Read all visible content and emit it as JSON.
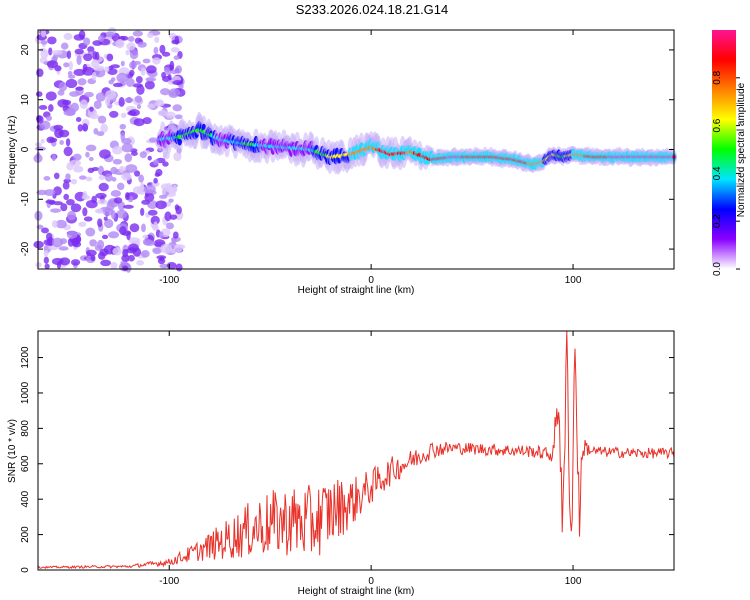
{
  "title": "S233.2026.024.18.21.G14",
  "colors": {
    "snr_line": "#e8322a",
    "axis": "#000000"
  },
  "chart_data": [
    {
      "type": "heatmap",
      "xlabel": "Height of straight line (km)",
      "ylabel": "Frequency (Hz)",
      "xlim": [
        -165,
        150
      ],
      "ylim": [
        -24,
        24
      ],
      "xticks": [
        -100,
        0,
        100
      ],
      "yticks": [
        -20,
        -10,
        0,
        10,
        20
      ],
      "colorbar": {
        "label": "Normalized spectral amplitude",
        "range": [
          0,
          1
        ],
        "ticks": [
          0.0,
          0.2,
          0.4,
          0.6,
          0.8
        ],
        "tick_labels": [
          "0.0",
          "0.2",
          "0.4",
          "0.6",
          "0.8"
        ],
        "colormap": [
          "#ffffff",
          "#8a00ff",
          "#0000ff",
          "#00e5ff",
          "#00ff00",
          "#ffff00",
          "#ff8000",
          "#ff0000",
          "#ff1493"
        ]
      },
      "track": {
        "x": [
          -105,
          -95,
          -85,
          -75,
          -60,
          -45,
          -30,
          -20,
          -10,
          0,
          10,
          20,
          30,
          40,
          60,
          70,
          80,
          85,
          90,
          95,
          100,
          110,
          120,
          150
        ],
        "freq": [
          2,
          2.5,
          4,
          2,
          1,
          0.5,
          0,
          -1.5,
          -1,
          0.5,
          -1,
          -0.5,
          -2,
          -1.5,
          -1.5,
          -2,
          -3,
          -2.5,
          -1,
          -1.5,
          -1,
          -1.5,
          -1.5,
          -1.5
        ],
        "amplitude": [
          0.35,
          0.45,
          0.5,
          0.4,
          0.45,
          0.35,
          0.4,
          0.6,
          0.7,
          0.8,
          0.85,
          0.8,
          0.9,
          0.95,
          0.9,
          0.85,
          0.8,
          0.7,
          0.6,
          0.5,
          0.7,
          0.9,
          0.95,
          0.95
        ]
      },
      "noise_region": {
        "x_from": -165,
        "x_to": -100,
        "amplitude_range": [
          0.05,
          0.25
        ]
      }
    },
    {
      "type": "line",
      "xlabel": "Height of straight line (km)",
      "ylabel": "SNR (10 * v/v)",
      "xlim": [
        -165,
        150
      ],
      "ylim": [
        0,
        1350
      ],
      "xticks": [
        -100,
        0,
        100
      ],
      "yticks": [
        0,
        200,
        400,
        600,
        800,
        1000,
        1200
      ],
      "series": [
        {
          "name": "SNR",
          "trend_x": [
            -165,
            -120,
            -100,
            -85,
            -70,
            -55,
            -40,
            -30,
            -20,
            -10,
            0,
            10,
            20,
            30,
            40,
            60,
            80,
            90,
            93,
            95,
            97,
            99,
            101,
            103,
            105,
            110,
            130,
            150
          ],
          "trend_y": [
            15,
            20,
            45,
            110,
            180,
            250,
            280,
            260,
            330,
            380,
            470,
            560,
            620,
            680,
            690,
            680,
            670,
            650,
            1000,
            200,
            1320,
            80,
            1300,
            300,
            700,
            670,
            660,
            660
          ],
          "noise_amplitude": [
            5,
            8,
            20,
            60,
            120,
            180,
            200,
            220,
            200,
            140,
            100,
            80,
            60,
            50,
            35,
            35,
            35,
            40,
            200,
            200,
            200,
            200,
            200,
            200,
            60,
            30,
            30,
            30
          ]
        }
      ]
    }
  ]
}
